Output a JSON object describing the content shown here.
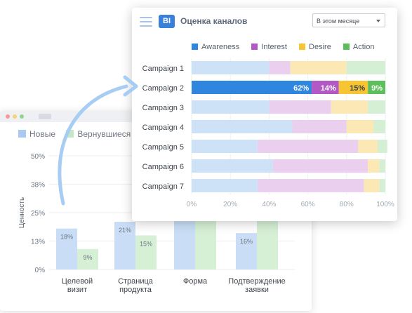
{
  "back_chart": {
    "legend": [
      "Новые",
      "Вернувшиеся"
    ],
    "ylabel": "Ценность",
    "ticks": [
      "0%",
      "13%",
      "25%",
      "38%",
      "50%"
    ],
    "categories": [
      [
        "Целевой",
        "визит"
      ],
      [
        "Страница",
        "продукта"
      ],
      [
        "Форма"
      ],
      [
        "Подтверждение",
        "заявки"
      ]
    ],
    "labels_new": [
      "18%",
      "21%",
      "",
      "16%"
    ],
    "labels_returning": [
      "9%",
      "15%",
      "",
      ""
    ],
    "colors": {
      "new": "#c9def6",
      "returning": "#d6f0d6",
      "label": "#6b7480"
    }
  },
  "front_chart": {
    "title": "Оценка каналов",
    "period": "В этом месяце",
    "legend": [
      "Awareness",
      "Interest",
      "Desire",
      "Action"
    ],
    "x_ticks": [
      "0%",
      "20%",
      "40%",
      "60%",
      "80%",
      "100%"
    ],
    "labels_row2": [
      "62%",
      "14%",
      "15%",
      "9%"
    ],
    "colors": {
      "light": [
        "#cde1f7",
        "#ead0ee",
        "#fbe8b5",
        "#d4efd4"
      ],
      "strong": [
        "#2f86df",
        "#b359c6",
        "#f7c531",
        "#5cbf5c"
      ]
    }
  },
  "chart_data": [
    {
      "type": "bar",
      "title": "",
      "xlabel": "",
      "ylabel": "Ценность",
      "categories": [
        "Целевой визит",
        "Страница продукта",
        "Форма",
        "Подтверждение заявки"
      ],
      "series": [
        {
          "name": "Новые",
          "values": [
            18,
            21,
            42,
            16
          ]
        },
        {
          "name": "Вернувшиеся",
          "values": [
            9,
            15,
            40,
            40
          ]
        }
      ],
      "ylim": [
        0,
        50
      ],
      "grid": true,
      "legend": "top-left"
    },
    {
      "type": "bar",
      "title": "Оценка каналов",
      "xlabel": "",
      "ylabel": "",
      "categories": [
        "Campaign 1",
        "Campaign 2",
        "Campaign 3",
        "Campaign 4",
        "Campaign 5",
        "Campaign 6",
        "Campaign 7"
      ],
      "series": [
        {
          "name": "Awareness",
          "values": [
            40,
            62,
            40,
            52,
            34,
            42,
            34
          ]
        },
        {
          "name": "Interest",
          "values": [
            11,
            14,
            32,
            28,
            52,
            49,
            55
          ]
        },
        {
          "name": "Desire",
          "values": [
            29,
            15,
            19,
            14,
            10,
            6,
            8
          ]
        },
        {
          "name": "Action",
          "values": [
            20,
            9,
            9,
            6,
            5,
            3,
            3
          ]
        }
      ],
      "xlim": [
        0,
        100
      ],
      "stacked": true,
      "orientation": "horizontal",
      "grid": true,
      "legend": "top"
    }
  ]
}
